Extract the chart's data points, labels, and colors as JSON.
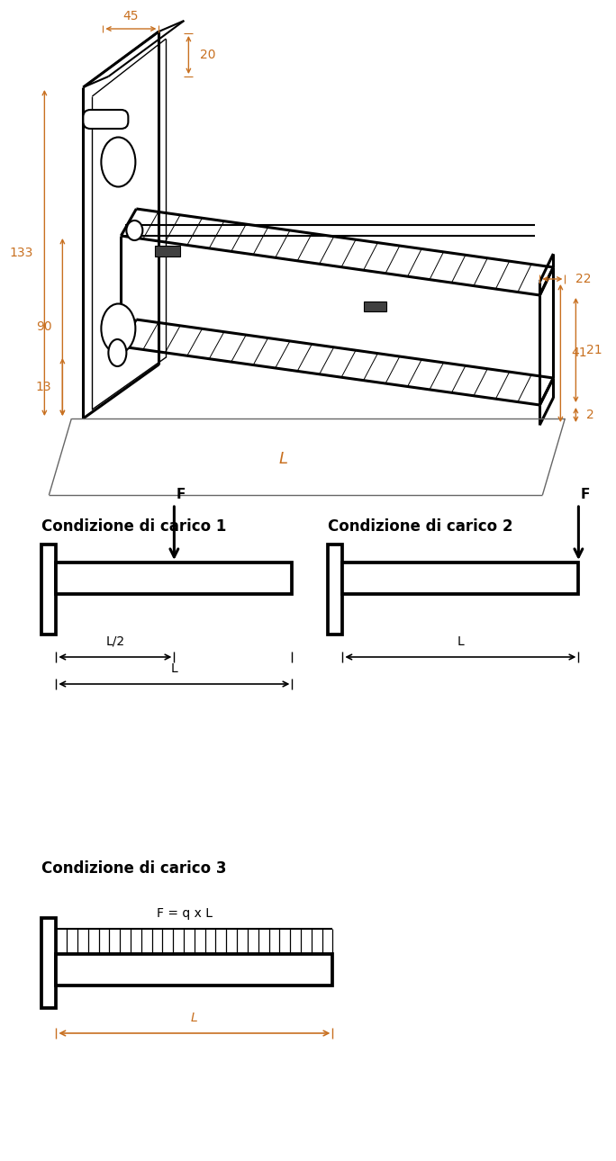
{
  "bg_color": "#ffffff",
  "dim_color": "#c87020",
  "line_color": "#000000",
  "title_fontsize": 12,
  "dim_fontsize": 10,
  "carico1_title": "Condizione di carico 1",
  "carico2_title": "Condizione di carico 2",
  "carico3_title": "Condizione di carico 3",
  "carico3_formula": "F = q x L",
  "label_L2": "L/2",
  "label_L": "L",
  "label_F": "F",
  "dims_top": [
    "45",
    "20",
    "133",
    "90",
    "13",
    "22",
    "21",
    "2",
    "41",
    "L"
  ]
}
